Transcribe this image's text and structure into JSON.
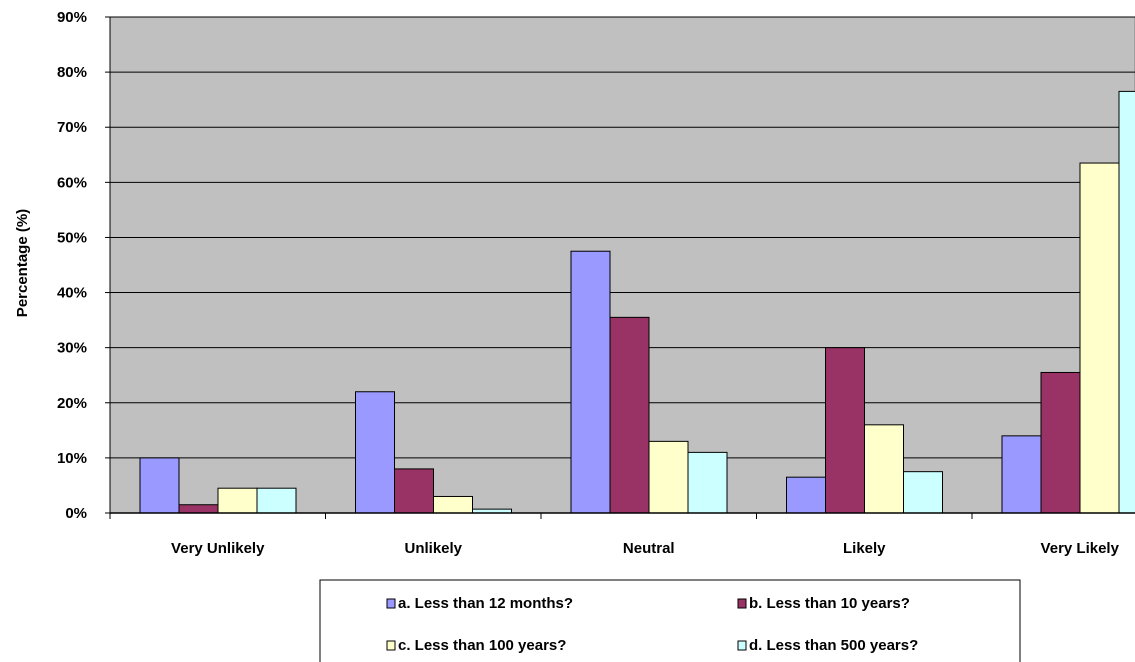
{
  "chart_data": {
    "type": "bar",
    "title": "",
    "xlabel": "",
    "ylabel": "Percentage (%)",
    "ylim": [
      0,
      90
    ],
    "ytick_step": 10,
    "ytick_suffix": "%",
    "grid": true,
    "plot_background": "#C0C0C0",
    "legend_position": "bottom",
    "categories": [
      "Very Unlikely",
      "Unlikely",
      "Neutral",
      "Likely",
      "Very Likely"
    ],
    "series": [
      {
        "name": "a. Less than 12 months?",
        "color": "#9999FF",
        "values": [
          10,
          22,
          47.5,
          6.5,
          14
        ]
      },
      {
        "name": "b. Less than 10 years?",
        "color": "#993366",
        "values": [
          1.5,
          8,
          35.5,
          30,
          25.5
        ]
      },
      {
        "name": "c. Less than 100 years?",
        "color": "#FFFFCC",
        "values": [
          4.5,
          3,
          13,
          16,
          63.5
        ]
      },
      {
        "name": "d. Less than 500 years?",
        "color": "#CCFFFF",
        "values": [
          4.5,
          0.7,
          11,
          7.5,
          76.5
        ]
      }
    ]
  }
}
